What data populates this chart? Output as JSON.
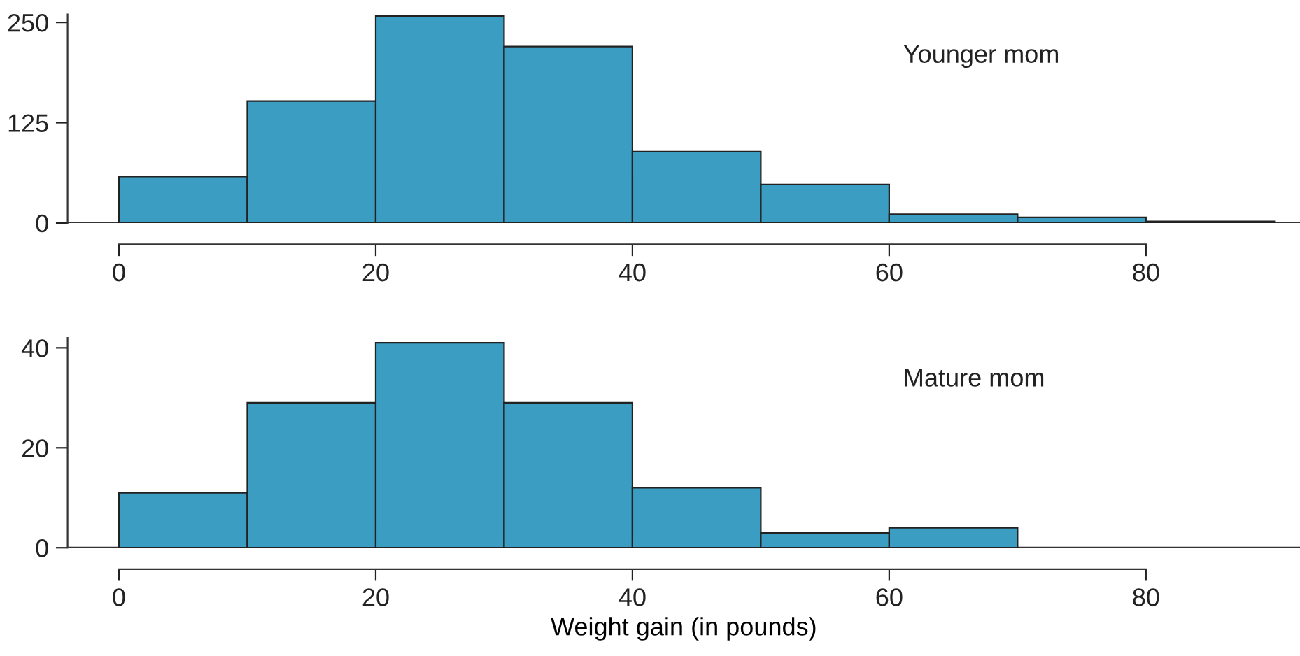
{
  "chart_data": [
    {
      "type": "histogram",
      "bins": [
        0,
        10,
        20,
        30,
        40,
        50,
        60,
        70,
        80,
        90
      ],
      "values": [
        58,
        152,
        258,
        220,
        89,
        48,
        11,
        7,
        2
      ],
      "color": "#3a9dc1",
      "xlim": [
        -4,
        92
      ],
      "xticks": [
        0,
        20,
        40,
        60,
        80
      ],
      "ylim": [
        0,
        260
      ],
      "yticks": [
        0,
        125,
        250
      ],
      "annotations": [
        "Younger mom"
      ],
      "ref_lines": [
        {
          "axis": "y",
          "value": 0
        }
      ],
      "grid": false
    },
    {
      "type": "histogram",
      "bins": [
        0,
        10,
        20,
        30,
        40,
        50,
        60,
        70,
        80,
        90
      ],
      "values": [
        11,
        29,
        41,
        29,
        12,
        3,
        4,
        0,
        0
      ],
      "color": "#3a9dc1",
      "xlim": [
        -4,
        92
      ],
      "xticks": [
        0,
        20,
        40,
        60,
        80
      ],
      "ylim": [
        0,
        42
      ],
      "yticks": [
        0,
        20,
        40
      ],
      "xlabel": "Weight gain (in pounds)",
      "annotations": [
        "Mature mom"
      ],
      "ref_lines": [
        {
          "axis": "y",
          "value": 0
        }
      ],
      "grid": false
    }
  ]
}
